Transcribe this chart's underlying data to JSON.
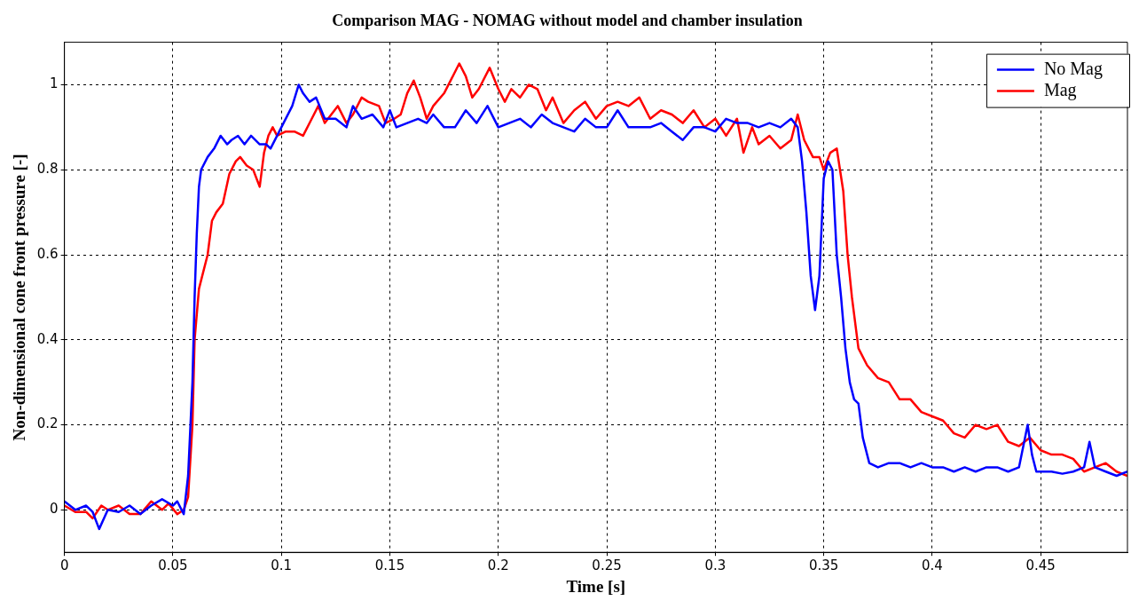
{
  "chart_data": {
    "type": "line",
    "title": "Comparison MAG - NOMAG without model and chamber insulation",
    "xlabel": "Time [s]",
    "ylabel": "Non-dimensional cone front pressure [-]",
    "xlim": [
      0,
      0.49
    ],
    "xticks": [
      0,
      0.05,
      0.1,
      0.15,
      0.2,
      0.25,
      0.3,
      0.35,
      0.4,
      0.45
    ],
    "ylim": [
      -0.1,
      1.1
    ],
    "yticks": [
      0,
      0.2,
      0.4,
      0.6,
      0.8,
      1
    ],
    "grid": true,
    "legend": "top right",
    "line_style": "solid",
    "marker": "none",
    "series": [
      {
        "name": "No Mag",
        "color": "#0000ff",
        "x": [
          0,
          0.005,
          0.01,
          0.013,
          0.016,
          0.02,
          0.025,
          0.03,
          0.035,
          0.04,
          0.045,
          0.05,
          0.052,
          0.055,
          0.057,
          0.059,
          0.06,
          0.061,
          0.062,
          0.063,
          0.066,
          0.069,
          0.072,
          0.075,
          0.077,
          0.08,
          0.083,
          0.086,
          0.09,
          0.093,
          0.095,
          0.1,
          0.105,
          0.108,
          0.11,
          0.113,
          0.116,
          0.12,
          0.125,
          0.13,
          0.133,
          0.137,
          0.142,
          0.147,
          0.15,
          0.153,
          0.158,
          0.163,
          0.167,
          0.17,
          0.175,
          0.18,
          0.185,
          0.19,
          0.195,
          0.2,
          0.205,
          0.21,
          0.215,
          0.22,
          0.225,
          0.23,
          0.235,
          0.24,
          0.245,
          0.25,
          0.255,
          0.26,
          0.265,
          0.27,
          0.275,
          0.28,
          0.285,
          0.29,
          0.295,
          0.3,
          0.305,
          0.31,
          0.315,
          0.32,
          0.325,
          0.33,
          0.335,
          0.338,
          0.34,
          0.342,
          0.344,
          0.346,
          0.348,
          0.35,
          0.352,
          0.354,
          0.356,
          0.358,
          0.36,
          0.362,
          0.364,
          0.366,
          0.368,
          0.371,
          0.375,
          0.38,
          0.385,
          0.39,
          0.395,
          0.4,
          0.405,
          0.41,
          0.415,
          0.42,
          0.425,
          0.43,
          0.435,
          0.44,
          0.442,
          0.444,
          0.446,
          0.448,
          0.455,
          0.46,
          0.465,
          0.47,
          0.4725,
          0.475,
          0.48,
          0.485,
          0.49
        ],
        "values": [
          0.02,
          0,
          0.01,
          -0.005,
          -0.045,
          0,
          -0.005,
          0.01,
          -0.01,
          0.01,
          0.025,
          0.01,
          0.02,
          -0.01,
          0.08,
          0.3,
          0.5,
          0.65,
          0.76,
          0.8,
          0.83,
          0.85,
          0.88,
          0.86,
          0.87,
          0.88,
          0.86,
          0.88,
          0.86,
          0.86,
          0.85,
          0.9,
          0.95,
          1,
          0.98,
          0.96,
          0.97,
          0.92,
          0.92,
          0.9,
          0.95,
          0.92,
          0.93,
          0.9,
          0.94,
          0.9,
          0.91,
          0.92,
          0.91,
          0.93,
          0.9,
          0.9,
          0.94,
          0.91,
          0.95,
          0.9,
          0.91,
          0.92,
          0.9,
          0.93,
          0.91,
          0.9,
          0.89,
          0.92,
          0.9,
          0.9,
          0.94,
          0.9,
          0.9,
          0.9,
          0.91,
          0.89,
          0.87,
          0.9,
          0.9,
          0.89,
          0.92,
          0.91,
          0.91,
          0.9,
          0.91,
          0.9,
          0.92,
          0.9,
          0.82,
          0.7,
          0.55,
          0.47,
          0.55,
          0.78,
          0.82,
          0.8,
          0.6,
          0.5,
          0.38,
          0.3,
          0.26,
          0.25,
          0.17,
          0.11,
          0.1,
          0.11,
          0.11,
          0.1,
          0.11,
          0.1,
          0.1,
          0.09,
          0.1,
          0.09,
          0.1,
          0.1,
          0.09,
          0.1,
          0.15,
          0.2,
          0.13,
          0.09,
          0.09,
          0.085,
          0.09,
          0.1,
          0.16,
          0.1,
          0.09,
          0.08,
          0.09
        ]
      },
      {
        "name": "Mag",
        "color": "#ff0000",
        "x": [
          0,
          0.005,
          0.01,
          0.013,
          0.017,
          0.02,
          0.025,
          0.03,
          0.035,
          0.04,
          0.045,
          0.048,
          0.052,
          0.055,
          0.057,
          0.059,
          0.06,
          0.062,
          0.064,
          0.066,
          0.068,
          0.07,
          0.073,
          0.076,
          0.079,
          0.081,
          0.084,
          0.087,
          0.09,
          0.092,
          0.094,
          0.096,
          0.098,
          0.102,
          0.106,
          0.11,
          0.114,
          0.117,
          0.12,
          0.123,
          0.126,
          0.13,
          0.133,
          0.137,
          0.14,
          0.145,
          0.148,
          0.152,
          0.155,
          0.158,
          0.161,
          0.164,
          0.167,
          0.17,
          0.175,
          0.182,
          0.185,
          0.188,
          0.191,
          0.196,
          0.2,
          0.203,
          0.206,
          0.21,
          0.214,
          0.218,
          0.222,
          0.225,
          0.23,
          0.235,
          0.24,
          0.245,
          0.25,
          0.255,
          0.26,
          0.265,
          0.27,
          0.275,
          0.28,
          0.285,
          0.29,
          0.295,
          0.3,
          0.305,
          0.31,
          0.313,
          0.317,
          0.32,
          0.325,
          0.33,
          0.335,
          0.338,
          0.341,
          0.345,
          0.348,
          0.35,
          0.353,
          0.356,
          0.359,
          0.361,
          0.363,
          0.366,
          0.37,
          0.375,
          0.38,
          0.385,
          0.39,
          0.395,
          0.4,
          0.405,
          0.41,
          0.415,
          0.42,
          0.425,
          0.43,
          0.435,
          0.44,
          0.445,
          0.45,
          0.455,
          0.46,
          0.465,
          0.47,
          0.475,
          0.48,
          0.485,
          0.49
        ],
        "values": [
          0.01,
          -0.005,
          -0.005,
          -0.02,
          0.01,
          0,
          0.01,
          -0.01,
          -0.01,
          0.02,
          0,
          0.015,
          -0.01,
          0,
          0.03,
          0.2,
          0.4,
          0.52,
          0.56,
          0.6,
          0.68,
          0.7,
          0.72,
          0.79,
          0.82,
          0.83,
          0.81,
          0.8,
          0.76,
          0.84,
          0.88,
          0.9,
          0.88,
          0.89,
          0.89,
          0.88,
          0.92,
          0.95,
          0.91,
          0.93,
          0.95,
          0.91,
          0.93,
          0.97,
          0.96,
          0.95,
          0.91,
          0.92,
          0.93,
          0.98,
          1.01,
          0.97,
          0.92,
          0.95,
          0.98,
          1.05,
          1.02,
          0.97,
          0.99,
          1.04,
          0.99,
          0.96,
          0.99,
          0.97,
          1,
          0.99,
          0.94,
          0.97,
          0.91,
          0.94,
          0.96,
          0.92,
          0.95,
          0.96,
          0.95,
          0.97,
          0.92,
          0.94,
          0.93,
          0.91,
          0.94,
          0.9,
          0.92,
          0.88,
          0.92,
          0.84,
          0.9,
          0.86,
          0.88,
          0.85,
          0.87,
          0.93,
          0.87,
          0.83,
          0.83,
          0.8,
          0.84,
          0.85,
          0.75,
          0.6,
          0.5,
          0.38,
          0.34,
          0.31,
          0.3,
          0.26,
          0.26,
          0.23,
          0.22,
          0.21,
          0.18,
          0.17,
          0.2,
          0.19,
          0.2,
          0.16,
          0.15,
          0.17,
          0.14,
          0.13,
          0.13,
          0.12,
          0.09,
          0.1,
          0.11,
          0.09,
          0.08
        ]
      }
    ]
  }
}
